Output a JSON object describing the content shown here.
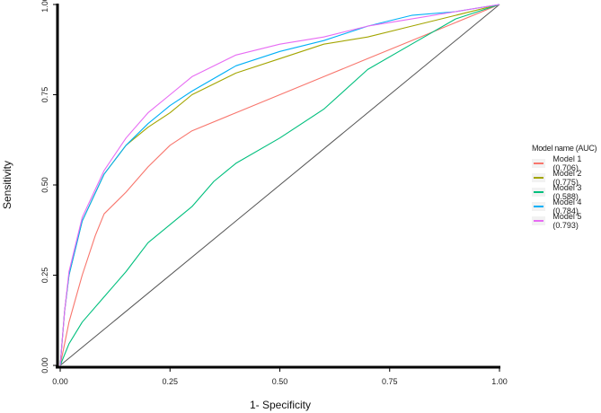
{
  "chart_data": {
    "type": "line",
    "title": "",
    "xlabel": "1- Specificity",
    "ylabel": "Sensitivity",
    "xlim": [
      0,
      1
    ],
    "ylim": [
      0,
      1
    ],
    "x_ticks": [
      "0.00",
      "0.25",
      "0.50",
      "0.75",
      "1.00"
    ],
    "y_ticks": [
      "0.00",
      "0.25",
      "0.50",
      "0.75",
      "1.00"
    ],
    "grid": false,
    "legend_title": "Model name (AUC)",
    "legend_position": "right",
    "reference_line": {
      "x": [
        0,
        1
      ],
      "y": [
        0,
        1
      ],
      "color": "#555555"
    },
    "series": [
      {
        "name": "Model 1 (0.706)",
        "color": "#F8766D",
        "x": [
          0,
          0.02,
          0.05,
          0.08,
          0.1,
          0.15,
          0.2,
          0.25,
          0.3,
          0.4,
          0.5,
          0.6,
          0.7,
          0.8,
          0.9,
          1
        ],
        "y": [
          0,
          0.12,
          0.25,
          0.36,
          0.42,
          0.48,
          0.55,
          0.61,
          0.65,
          0.7,
          0.75,
          0.8,
          0.85,
          0.9,
          0.95,
          1
        ]
      },
      {
        "name": "Model 2 (0.775)",
        "color": "#A3A500",
        "x": [
          0,
          0.01,
          0.02,
          0.05,
          0.1,
          0.15,
          0.2,
          0.25,
          0.3,
          0.4,
          0.5,
          0.6,
          0.7,
          0.8,
          0.9,
          1
        ],
        "y": [
          0,
          0.15,
          0.25,
          0.4,
          0.53,
          0.61,
          0.66,
          0.7,
          0.75,
          0.81,
          0.85,
          0.89,
          0.91,
          0.94,
          0.97,
          1
        ]
      },
      {
        "name": "Model 3 (0.588)",
        "color": "#00BF7D",
        "x": [
          0,
          0.02,
          0.05,
          0.1,
          0.15,
          0.2,
          0.25,
          0.3,
          0.35,
          0.4,
          0.5,
          0.6,
          0.7,
          0.8,
          0.9,
          1
        ],
        "y": [
          0,
          0.06,
          0.12,
          0.19,
          0.26,
          0.34,
          0.39,
          0.44,
          0.51,
          0.56,
          0.63,
          0.71,
          0.82,
          0.89,
          0.96,
          1
        ]
      },
      {
        "name": "Model 4 (0.784)",
        "color": "#00B0F6",
        "x": [
          0,
          0.01,
          0.02,
          0.05,
          0.1,
          0.15,
          0.2,
          0.25,
          0.3,
          0.4,
          0.5,
          0.6,
          0.7,
          0.8,
          0.9,
          1
        ],
        "y": [
          0,
          0.15,
          0.25,
          0.4,
          0.53,
          0.61,
          0.67,
          0.72,
          0.76,
          0.83,
          0.87,
          0.9,
          0.94,
          0.97,
          0.98,
          1
        ]
      },
      {
        "name": "Model 5 (0.793)",
        "color": "#E76BF3",
        "x": [
          0,
          0.01,
          0.02,
          0.05,
          0.1,
          0.15,
          0.2,
          0.25,
          0.3,
          0.4,
          0.5,
          0.6,
          0.7,
          0.8,
          0.9,
          1
        ],
        "y": [
          0,
          0.15,
          0.26,
          0.41,
          0.54,
          0.63,
          0.7,
          0.75,
          0.8,
          0.86,
          0.89,
          0.91,
          0.94,
          0.96,
          0.98,
          1
        ]
      }
    ]
  }
}
